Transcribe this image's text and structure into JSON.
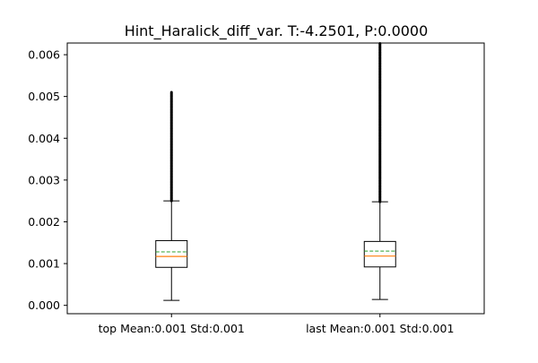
{
  "chart_data": {
    "type": "box",
    "title": "Hint_Haralick_diff_var. T:-4.2501, P:0.0000",
    "xlabel": "",
    "ylabel": "",
    "ylim": [
      -0.0002,
      0.00628
    ],
    "yticks": [
      0.0,
      0.001,
      0.002,
      0.003,
      0.004,
      0.005,
      0.006
    ],
    "ytick_labels": [
      "0.000",
      "0.001",
      "0.002",
      "0.003",
      "0.004",
      "0.005",
      "0.006"
    ],
    "grid": false,
    "categories": [
      "top Mean:0.001 Std:0.001",
      "last Mean:0.001 Std:0.001"
    ],
    "boxes": [
      {
        "whisker_low": 0.00012,
        "q1": 0.00091,
        "median": 0.00117,
        "mean": 0.00128,
        "q3": 0.00155,
        "whisker_high": 0.0025,
        "outliers_min": 0.0025,
        "outliers_max": 0.0051
      },
      {
        "whisker_low": 0.00014,
        "q1": 0.00092,
        "median": 0.00118,
        "mean": 0.0013,
        "q3": 0.00153,
        "whisker_high": 0.00248,
        "outliers_min": 0.00248,
        "outliers_max": 0.00627
      }
    ],
    "colors": {
      "box": "#000000",
      "median": "#ff7f0e",
      "mean": "#2ca02c",
      "outlier": "#000000"
    }
  }
}
